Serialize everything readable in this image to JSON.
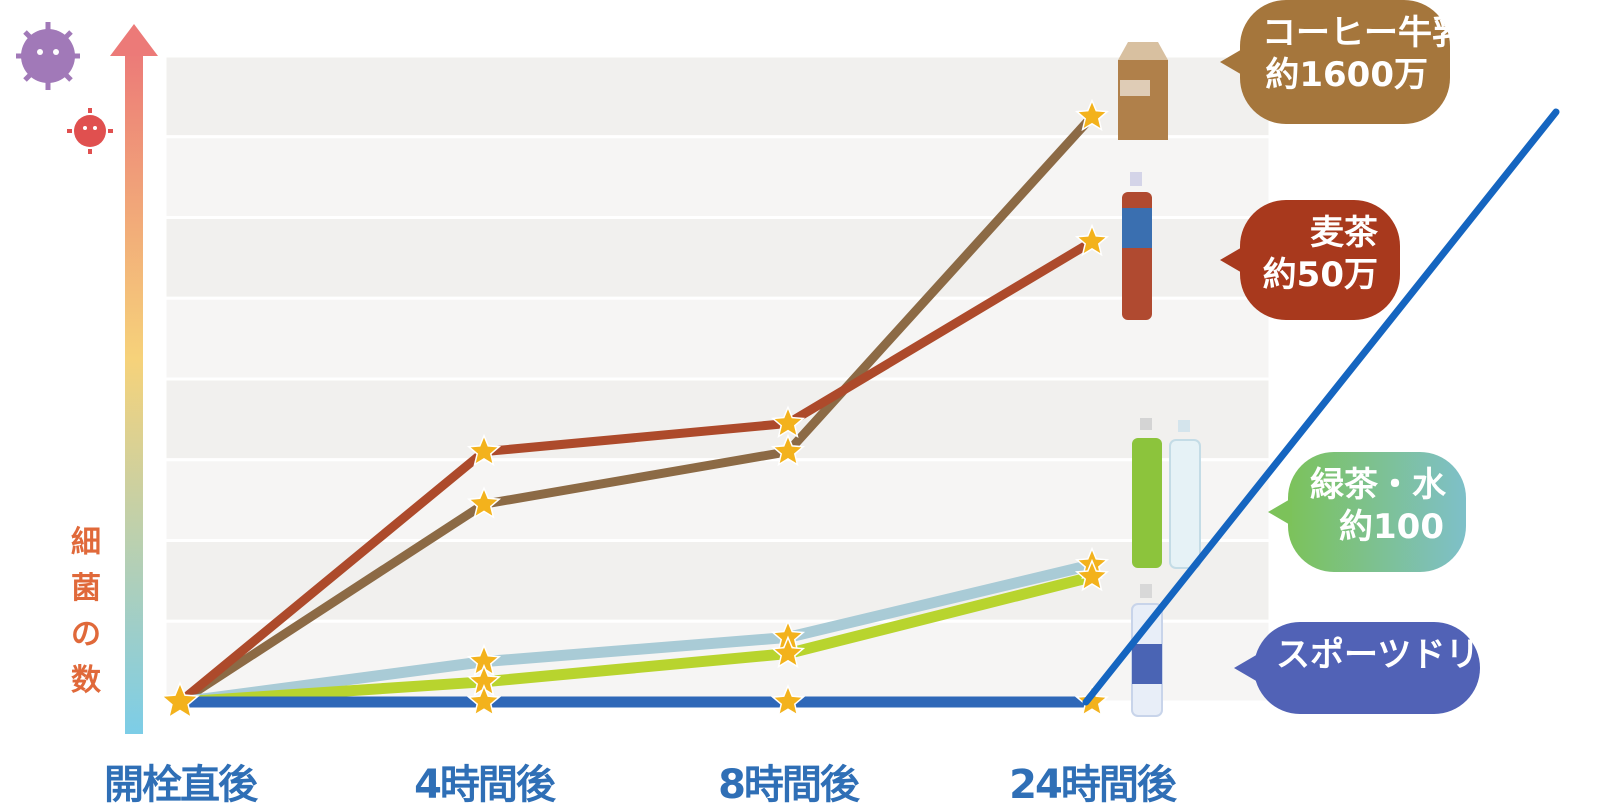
{
  "chart_data": {
    "type": "line",
    "categories": [
      "開栓直後",
      "4時間後",
      "8時間後",
      "24時間後"
    ],
    "ylabel": "細菌の数",
    "series": [
      {
        "name": "コーヒー牛乳",
        "label_line1": "コーヒー牛乳",
        "label_line2": "約1600万",
        "color": "#8c6a45",
        "values": [
          0,
          2.45,
          3.1,
          7.25
        ]
      },
      {
        "name": "麦茶",
        "label_line1": "麦茶",
        "label_line2": "約50万",
        "color": "#ad4a2b",
        "values": [
          0,
          3.1,
          3.45,
          5.7
        ]
      },
      {
        "name": "緑茶・水 (水)",
        "color": "#a9cbd6",
        "values": [
          0,
          0.5,
          0.8,
          1.7
        ]
      },
      {
        "name": "緑茶・水 (緑茶)",
        "color": "#b8d42e",
        "values": [
          0,
          0.25,
          0.6,
          1.55
        ]
      },
      {
        "name": "スポーツドリンク",
        "color": "#2f68b8",
        "values": [
          0,
          0,
          0,
          0
        ]
      }
    ],
    "green_water_label_line1": "緑茶・水",
    "green_water_label_line2": "約100",
    "sports_label": "スポーツドリンク",
    "ylim": [
      0,
      8
    ],
    "grid": true
  },
  "colors": {
    "star": "#f3b21c",
    "axis_arrow_top": "#ec7a78",
    "axis_arrow_bottom": "#7ccde7",
    "annotation_line": "#1565c0"
  }
}
